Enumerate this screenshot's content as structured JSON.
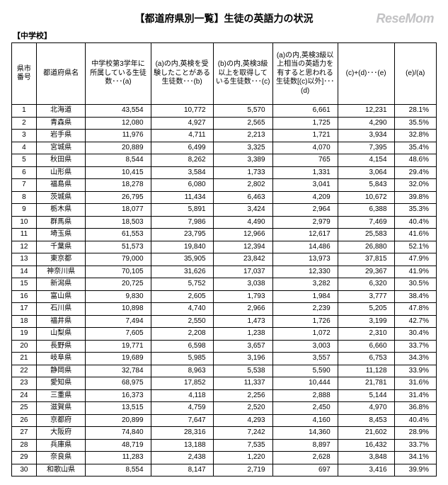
{
  "watermark": "ReseMom",
  "title": "【都道府県別一覧】生徒の英語力の状況",
  "subtitle": "【中学校】",
  "columns": {
    "no": "県市\n番号",
    "pref": "都道府県名",
    "a": "中学校第3学年に所属している生徒数･･･(a)",
    "b": "(a)の内,英検を受験したことがある生徒数･･･(b)",
    "c": "(b)の内,英検3級以上を取得している生徒数･･･(c)",
    "d": "(a)の内,英検3級以上相当の英語力を有すると思われる生徒数[(c)以外]･･･(d)",
    "e": "(c)+(d)･･･(e)",
    "p": "(e)/(a)"
  },
  "rows": [
    {
      "no": 1,
      "pref": "北海道",
      "a": "43,554",
      "b": "10,772",
      "c": "5,570",
      "d": "6,661",
      "e": "12,231",
      "p": "28.1%"
    },
    {
      "no": 2,
      "pref": "青森県",
      "a": "12,080",
      "b": "4,927",
      "c": "2,565",
      "d": "1,725",
      "e": "4,290",
      "p": "35.5%"
    },
    {
      "no": 3,
      "pref": "岩手県",
      "a": "11,976",
      "b": "4,711",
      "c": "2,213",
      "d": "1,721",
      "e": "3,934",
      "p": "32.8%"
    },
    {
      "no": 4,
      "pref": "宮城県",
      "a": "20,889",
      "b": "6,499",
      "c": "3,325",
      "d": "4,070",
      "e": "7,395",
      "p": "35.4%"
    },
    {
      "no": 5,
      "pref": "秋田県",
      "a": "8,544",
      "b": "8,262",
      "c": "3,389",
      "d": "765",
      "e": "4,154",
      "p": "48.6%"
    },
    {
      "no": 6,
      "pref": "山形県",
      "a": "10,415",
      "b": "3,584",
      "c": "1,733",
      "d": "1,331",
      "e": "3,064",
      "p": "29.4%"
    },
    {
      "no": 7,
      "pref": "福島県",
      "a": "18,278",
      "b": "6,080",
      "c": "2,802",
      "d": "3,041",
      "e": "5,843",
      "p": "32.0%"
    },
    {
      "no": 8,
      "pref": "茨城県",
      "a": "26,795",
      "b": "11,434",
      "c": "6,463",
      "d": "4,209",
      "e": "10,672",
      "p": "39.8%"
    },
    {
      "no": 9,
      "pref": "栃木県",
      "a": "18,077",
      "b": "5,891",
      "c": "3,424",
      "d": "2,964",
      "e": "6,388",
      "p": "35.3%"
    },
    {
      "no": 10,
      "pref": "群馬県",
      "a": "18,503",
      "b": "7,986",
      "c": "4,490",
      "d": "2,979",
      "e": "7,469",
      "p": "40.4%"
    },
    {
      "no": 11,
      "pref": "埼玉県",
      "a": "61,553",
      "b": "23,795",
      "c": "12,966",
      "d": "12,617",
      "e": "25,583",
      "p": "41.6%"
    },
    {
      "no": 12,
      "pref": "千葉県",
      "a": "51,573",
      "b": "19,840",
      "c": "12,394",
      "d": "14,486",
      "e": "26,880",
      "p": "52.1%"
    },
    {
      "no": 13,
      "pref": "東京都",
      "a": "79,000",
      "b": "35,905",
      "c": "23,842",
      "d": "13,973",
      "e": "37,815",
      "p": "47.9%"
    },
    {
      "no": 14,
      "pref": "神奈川県",
      "a": "70,105",
      "b": "31,626",
      "c": "17,037",
      "d": "12,330",
      "e": "29,367",
      "p": "41.9%"
    },
    {
      "no": 15,
      "pref": "新潟県",
      "a": "20,725",
      "b": "5,752",
      "c": "3,038",
      "d": "3,282",
      "e": "6,320",
      "p": "30.5%"
    },
    {
      "no": 16,
      "pref": "富山県",
      "a": "9,830",
      "b": "2,605",
      "c": "1,793",
      "d": "1,984",
      "e": "3,777",
      "p": "38.4%"
    },
    {
      "no": 17,
      "pref": "石川県",
      "a": "10,898",
      "b": "4,740",
      "c": "2,966",
      "d": "2,239",
      "e": "5,205",
      "p": "47.8%"
    },
    {
      "no": 18,
      "pref": "福井県",
      "a": "7,494",
      "b": "2,550",
      "c": "1,473",
      "d": "1,726",
      "e": "3,199",
      "p": "42.7%"
    },
    {
      "no": 19,
      "pref": "山梨県",
      "a": "7,605",
      "b": "2,208",
      "c": "1,238",
      "d": "1,072",
      "e": "2,310",
      "p": "30.4%"
    },
    {
      "no": 20,
      "pref": "長野県",
      "a": "19,771",
      "b": "6,598",
      "c": "3,657",
      "d": "3,003",
      "e": "6,660",
      "p": "33.7%"
    },
    {
      "no": 21,
      "pref": "岐阜県",
      "a": "19,689",
      "b": "5,985",
      "c": "3,196",
      "d": "3,557",
      "e": "6,753",
      "p": "34.3%"
    },
    {
      "no": 22,
      "pref": "静岡県",
      "a": "32,784",
      "b": "8,963",
      "c": "5,538",
      "d": "5,590",
      "e": "11,128",
      "p": "33.9%"
    },
    {
      "no": 23,
      "pref": "愛知県",
      "a": "68,975",
      "b": "17,852",
      "c": "11,337",
      "d": "10,444",
      "e": "21,781",
      "p": "31.6%"
    },
    {
      "no": 24,
      "pref": "三重県",
      "a": "16,373",
      "b": "4,118",
      "c": "2,256",
      "d": "2,888",
      "e": "5,144",
      "p": "31.4%"
    },
    {
      "no": 25,
      "pref": "滋賀県",
      "a": "13,515",
      "b": "4,759",
      "c": "2,520",
      "d": "2,450",
      "e": "4,970",
      "p": "36.8%"
    },
    {
      "no": 26,
      "pref": "京都府",
      "a": "20,899",
      "b": "7,647",
      "c": "4,293",
      "d": "4,160",
      "e": "8,453",
      "p": "40.4%"
    },
    {
      "no": 27,
      "pref": "大阪府",
      "a": "74,840",
      "b": "28,316",
      "c": "7,242",
      "d": "14,360",
      "e": "21,602",
      "p": "28.9%"
    },
    {
      "no": 28,
      "pref": "兵庫県",
      "a": "48,719",
      "b": "13,188",
      "c": "7,535",
      "d": "8,897",
      "e": "16,432",
      "p": "33.7%"
    },
    {
      "no": 29,
      "pref": "奈良県",
      "a": "11,283",
      "b": "2,438",
      "c": "1,220",
      "d": "2,628",
      "e": "3,848",
      "p": "34.1%"
    },
    {
      "no": 30,
      "pref": "和歌山県",
      "a": "8,554",
      "b": "8,147",
      "c": "2,719",
      "d": "697",
      "e": "3,416",
      "p": "39.9%"
    }
  ]
}
